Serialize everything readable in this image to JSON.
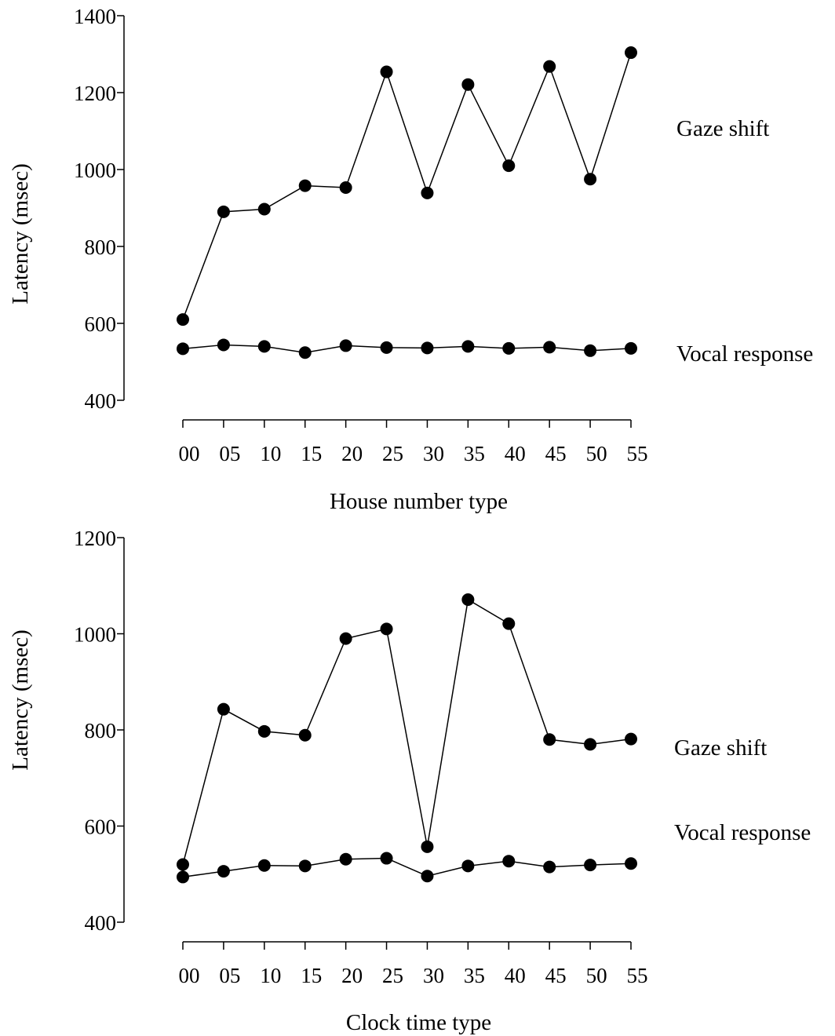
{
  "chart_data": [
    {
      "type": "line",
      "xlabel": "House number type",
      "ylabel": "Latency (msec)",
      "categories": [
        "00",
        "05",
        "10",
        "15",
        "20",
        "25",
        "30",
        "35",
        "40",
        "45",
        "50",
        "55"
      ],
      "yticks": [
        "400",
        "600",
        "800",
        "1000",
        "1200",
        "1400"
      ],
      "ylim": [
        400,
        1400
      ],
      "grid": false,
      "legend": "direct labels at right end of series",
      "series": [
        {
          "name": "Gaze shift",
          "values": [
            610,
            890,
            897,
            958,
            953,
            1254,
            939,
            1221,
            1010,
            1268,
            975,
            1304
          ]
        },
        {
          "name": "Vocal response",
          "values": [
            534,
            544,
            540,
            524,
            542,
            537,
            536,
            540,
            535,
            538,
            529,
            535
          ]
        }
      ]
    },
    {
      "type": "line",
      "xlabel": "Clock time type",
      "ylabel": "Latency (msec)",
      "categories": [
        "00",
        "05",
        "10",
        "15",
        "20",
        "25",
        "30",
        "35",
        "40",
        "45",
        "50",
        "55"
      ],
      "yticks": [
        "400",
        "600",
        "800",
        "1000",
        "1200"
      ],
      "ylim": [
        400,
        1200
      ],
      "grid": false,
      "legend": "direct labels at right end of series",
      "series": [
        {
          "name": "Gaze shift",
          "values": [
            520,
            843,
            797,
            789,
            990,
            1010,
            557,
            1071,
            1021,
            780,
            770,
            781
          ]
        },
        {
          "name": "Vocal response",
          "values": [
            494,
            506,
            518,
            517,
            531,
            533,
            496,
            517,
            527,
            515,
            519,
            522
          ]
        }
      ]
    }
  ]
}
